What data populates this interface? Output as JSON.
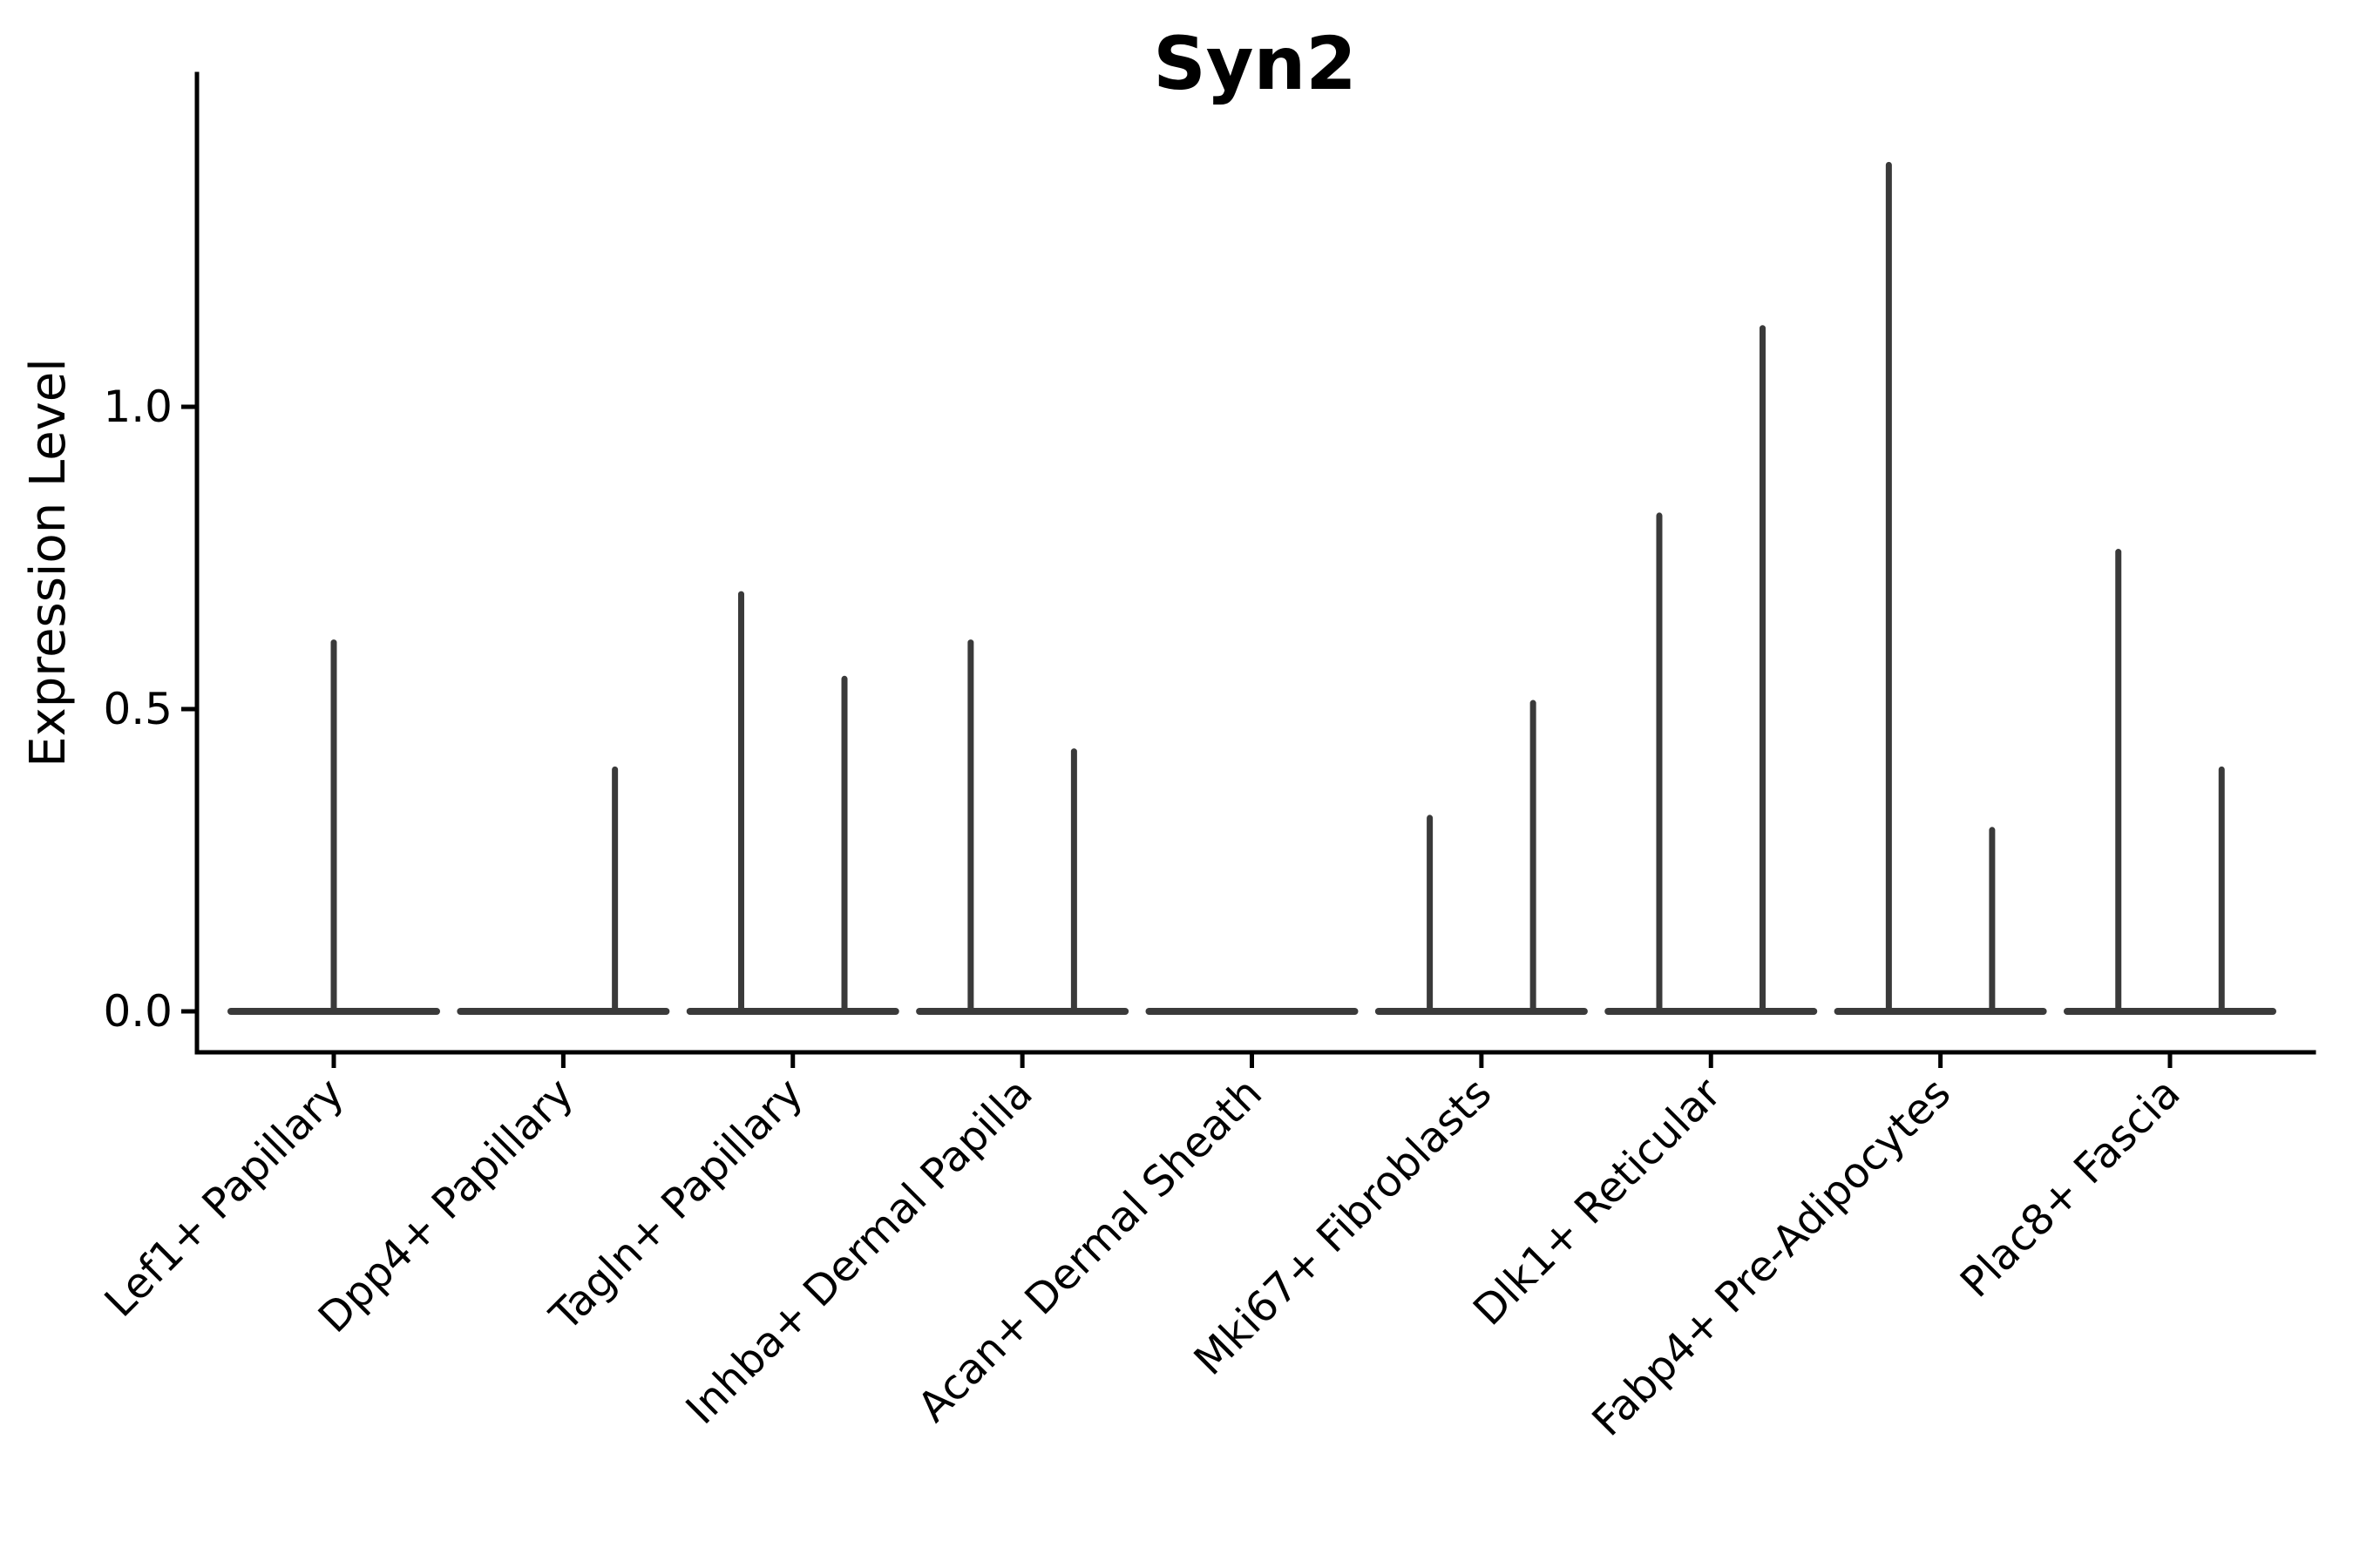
{
  "chart_data": {
    "type": "violin",
    "title": "Syn2",
    "xlabel": "",
    "ylabel": "Expression Level",
    "legend": "none",
    "grid": false,
    "ylim": [
      -0.07,
      1.55
    ],
    "yticks": [
      0.0,
      0.5,
      1.0
    ],
    "ytick_labels": [
      "0.0",
      "0.5",
      "1.0"
    ],
    "violin_color": "#3a3a3a",
    "axis_color": "#000000",
    "baseline_value": 0.0,
    "categories": [
      "Lef1+ Papillary",
      "Dpp4+ Papillary",
      "Tagln+ Papillary",
      "Inhba+ Dermal Papilla",
      "Acan+ Dermal Sheath",
      "Mki67+ Fibroblasts",
      "Dlk1+ Reticular",
      "Fabp4+ Pre-Adipocytes",
      "Plac8+ Fascia"
    ],
    "series": [
      {
        "category": "Lef1+ Papillary",
        "spikes": [
          {
            "offset": 0,
            "max": 0.61
          }
        ]
      },
      {
        "category": "Dpp4+ Papillary",
        "spikes": [
          {
            "offset": 0.225,
            "max": 0.4
          }
        ]
      },
      {
        "category": "Tagln+ Papillary",
        "spikes": [
          {
            "offset": -0.225,
            "max": 0.69
          },
          {
            "offset": 0.225,
            "max": 0.55
          }
        ]
      },
      {
        "category": "Inhba+ Dermal Papilla",
        "spikes": [
          {
            "offset": -0.225,
            "max": 0.61
          },
          {
            "offset": 0.225,
            "max": 0.43
          }
        ]
      },
      {
        "category": "Acan+ Dermal Sheath",
        "spikes": []
      },
      {
        "category": "Mki67+ Fibroblasts",
        "spikes": [
          {
            "offset": -0.225,
            "max": 0.32
          },
          {
            "offset": 0.225,
            "max": 0.51
          }
        ]
      },
      {
        "category": "Dlk1+ Reticular",
        "spikes": [
          {
            "offset": -0.225,
            "max": 0.82
          },
          {
            "offset": 0.225,
            "max": 1.13
          }
        ]
      },
      {
        "category": "Fabp4+ Pre-Adipocytes",
        "spikes": [
          {
            "offset": -0.225,
            "max": 1.4
          },
          {
            "offset": 0.225,
            "max": 0.3
          }
        ]
      },
      {
        "category": "Plac8+ Fascia",
        "spikes": [
          {
            "offset": -0.225,
            "max": 0.76
          },
          {
            "offset": 0.225,
            "max": 0.4
          }
        ]
      }
    ]
  }
}
